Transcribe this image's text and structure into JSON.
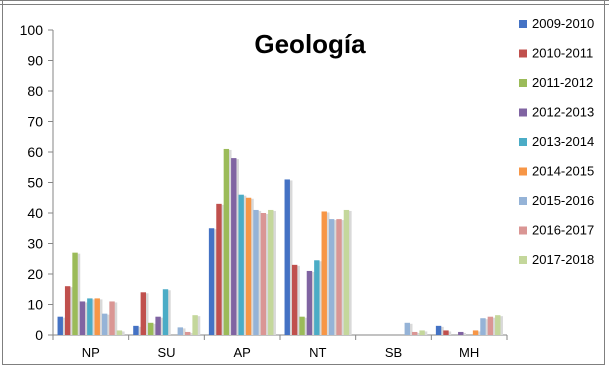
{
  "chart_data": {
    "type": "bar",
    "title": "Geología",
    "xlabel": "",
    "ylabel": "",
    "ylim": [
      0,
      100
    ],
    "yticks": [
      0,
      10,
      20,
      30,
      40,
      50,
      60,
      70,
      80,
      90,
      100
    ],
    "grid": false,
    "legend_position": "right",
    "categories": [
      "NP",
      "SU",
      "AP",
      "NT",
      "SB",
      "MH"
    ],
    "series": [
      {
        "name": "2009-2010",
        "color": "#4472c4",
        "values": [
          6,
          3,
          35,
          51,
          0,
          3
        ]
      },
      {
        "name": "2010-2011",
        "color": "#c0504d",
        "values": [
          16,
          14,
          43,
          23,
          0,
          1.5
        ]
      },
      {
        "name": "2011-2012",
        "color": "#9bbb59",
        "values": [
          27,
          4,
          61,
          6,
          0,
          0
        ]
      },
      {
        "name": "2012-2013",
        "color": "#8064a2",
        "values": [
          11,
          6,
          58,
          21,
          0,
          1
        ]
      },
      {
        "name": "2013-2014",
        "color": "#4bacc6",
        "values": [
          12,
          15,
          46,
          24.5,
          0,
          0
        ]
      },
      {
        "name": "2014-2015",
        "color": "#f79646",
        "values": [
          12,
          0,
          45,
          40.5,
          0,
          1.5
        ]
      },
      {
        "name": "2015-2016",
        "color": "#95b3d7",
        "values": [
          7,
          2.5,
          41,
          38,
          4,
          5.5
        ]
      },
      {
        "name": "2016-2017",
        "color": "#da9694",
        "values": [
          11,
          1,
          40,
          38,
          1,
          6
        ]
      },
      {
        "name": "2017-2018",
        "color": "#c4d79b",
        "values": [
          1.5,
          6.5,
          41,
          41,
          1.5,
          6.5
        ]
      }
    ]
  }
}
